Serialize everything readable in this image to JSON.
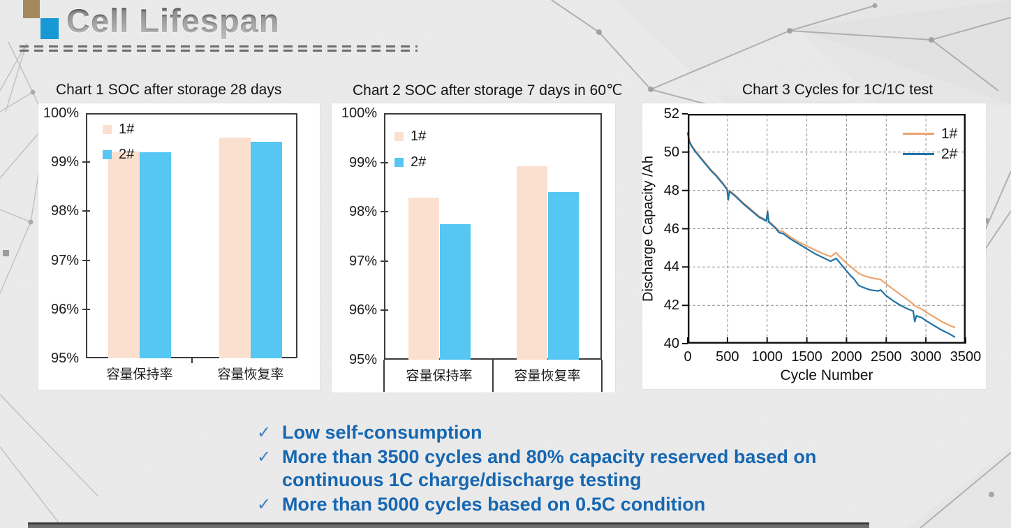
{
  "header": {
    "title": "Cell Lifespan"
  },
  "colors": {
    "slide_background": "#ededed",
    "accent_tan_square": "#a6885d",
    "accent_blue_square": "#1899d6",
    "bar_series1": "#FBE0D0",
    "bar_series2": "#56C7F2",
    "line_series1": "#ECA36E",
    "line_series2": "#2173A7",
    "bullet_text": "#1667B2"
  },
  "chart_data": [
    {
      "type": "bar",
      "title": "Chart 1 SOC after storage 28 days",
      "categories": [
        "容量保持率",
        "容量恢复率"
      ],
      "series": [
        {
          "name": "1#",
          "color": "#FBE0D0",
          "values": [
            99.22,
            99.5
          ]
        },
        {
          "name": "2#",
          "color": "#56C7F2",
          "values": [
            99.2,
            99.42
          ]
        }
      ],
      "ylim": [
        95,
        100
      ],
      "yticks": [
        100,
        99,
        98,
        97,
        96,
        95
      ],
      "ytick_labels": [
        "100%",
        "99%",
        "98%",
        "97%",
        "96%",
        "95%"
      ],
      "legend_position": "top-left",
      "grid": false
    },
    {
      "type": "bar",
      "title": "Chart 2 SOC after storage 7 days in 60℃",
      "categories": [
        "容量保持率",
        "容量恢复率"
      ],
      "series": [
        {
          "name": "1#",
          "color": "#FBE0D0",
          "values": [
            98.28,
            98.92
          ]
        },
        {
          "name": "2#",
          "color": "#56C7F2",
          "values": [
            97.75,
            98.4
          ]
        }
      ],
      "ylim": [
        95,
        100
      ],
      "yticks": [
        100,
        99,
        98,
        97,
        96,
        95
      ],
      "ytick_labels": [
        "100%",
        "99%",
        "98%",
        "97%",
        "96%",
        "95%"
      ],
      "legend_position": "top-left",
      "grid": false,
      "x_axis_table": true
    },
    {
      "type": "line",
      "title": "Chart 3 Cycles for 1C/1C test",
      "xlabel": "Cycle Number",
      "ylabel": "Discharge Capacity /Ah",
      "xlim": [
        0,
        3500
      ],
      "ylim": [
        40,
        52
      ],
      "xticks": [
        0,
        500,
        1000,
        1500,
        2000,
        2500,
        3000,
        3500
      ],
      "yticks": [
        52,
        50,
        48,
        46,
        44,
        42,
        40
      ],
      "grid": "dashed",
      "legend_position": "top-right",
      "series": [
        {
          "name": "1#",
          "color": "#ECA36E",
          "points": [
            [
              0,
              51.0
            ],
            [
              20,
              50.6
            ],
            [
              50,
              50.35
            ],
            [
              100,
              50.05
            ],
            [
              150,
              49.8
            ],
            [
              200,
              49.55
            ],
            [
              250,
              49.3
            ],
            [
              300,
              49.05
            ],
            [
              350,
              48.85
            ],
            [
              400,
              48.6
            ],
            [
              450,
              48.35
            ],
            [
              495,
              48.1
            ],
            [
              510,
              47.55
            ],
            [
              525,
              48.0
            ],
            [
              600,
              47.75
            ],
            [
              700,
              47.35
            ],
            [
              800,
              47.0
            ],
            [
              900,
              46.65
            ],
            [
              990,
              46.45
            ],
            [
              1005,
              46.95
            ],
            [
              1020,
              46.4
            ],
            [
              1100,
              46.1
            ],
            [
              1150,
              45.9
            ],
            [
              1200,
              45.85
            ],
            [
              1300,
              45.55
            ],
            [
              1400,
              45.3
            ],
            [
              1500,
              45.1
            ],
            [
              1600,
              44.9
            ],
            [
              1700,
              44.7
            ],
            [
              1800,
              44.55
            ],
            [
              1870,
              44.75
            ],
            [
              1900,
              44.6
            ],
            [
              2000,
              44.2
            ],
            [
              2100,
              43.85
            ],
            [
              2160,
              43.65
            ],
            [
              2250,
              43.5
            ],
            [
              2350,
              43.4
            ],
            [
              2430,
              43.35
            ],
            [
              2520,
              43.05
            ],
            [
              2600,
              42.8
            ],
            [
              2700,
              42.5
            ],
            [
              2800,
              42.2
            ],
            [
              2870,
              41.95
            ],
            [
              2950,
              41.8
            ],
            [
              3000,
              41.65
            ],
            [
              3100,
              41.4
            ],
            [
              3200,
              41.15
            ],
            [
              3300,
              40.95
            ],
            [
              3360,
              40.85
            ]
          ]
        },
        {
          "name": "2#",
          "color": "#2173A7",
          "points": [
            [
              0,
              51.0
            ],
            [
              20,
              50.55
            ],
            [
              50,
              50.3
            ],
            [
              100,
              50.0
            ],
            [
              150,
              49.75
            ],
            [
              200,
              49.5
            ],
            [
              250,
              49.25
            ],
            [
              300,
              49.0
            ],
            [
              350,
              48.8
            ],
            [
              400,
              48.55
            ],
            [
              450,
              48.3
            ],
            [
              495,
              48.05
            ],
            [
              510,
              47.5
            ],
            [
              525,
              47.95
            ],
            [
              600,
              47.7
            ],
            [
              700,
              47.3
            ],
            [
              800,
              46.95
            ],
            [
              900,
              46.6
            ],
            [
              990,
              46.4
            ],
            [
              1005,
              46.9
            ],
            [
              1020,
              46.35
            ],
            [
              1100,
              46.05
            ],
            [
              1150,
              45.8
            ],
            [
              1200,
              45.75
            ],
            [
              1300,
              45.45
            ],
            [
              1400,
              45.2
            ],
            [
              1500,
              44.95
            ],
            [
              1600,
              44.7
            ],
            [
              1700,
              44.5
            ],
            [
              1800,
              44.3
            ],
            [
              1870,
              44.45
            ],
            [
              1900,
              44.3
            ],
            [
              1950,
              44.05
            ],
            [
              2000,
              43.8
            ],
            [
              2050,
              43.55
            ],
            [
              2100,
              43.35
            ],
            [
              2150,
              43.05
            ],
            [
              2200,
              42.95
            ],
            [
              2300,
              42.8
            ],
            [
              2400,
              42.75
            ],
            [
              2430,
              42.8
            ],
            [
              2500,
              42.5
            ],
            [
              2600,
              42.2
            ],
            [
              2700,
              41.95
            ],
            [
              2780,
              41.8
            ],
            [
              2840,
              41.7
            ],
            [
              2860,
              41.15
            ],
            [
              2880,
              41.45
            ],
            [
              2950,
              41.35
            ],
            [
              3000,
              41.2
            ],
            [
              3100,
              40.95
            ],
            [
              3200,
              40.7
            ],
            [
              3300,
              40.5
            ],
            [
              3360,
              40.35
            ]
          ]
        }
      ]
    }
  ],
  "bullets": {
    "check_glyph": "✓",
    "items": [
      {
        "text": "Low self-consumption"
      },
      {
        "text": "More than 3500 cycles and 80% capacity reserved based on\ncontinuous 1C  charge/discharge testing"
      },
      {
        "text": "More than 5000 cycles based on 0.5C condition"
      }
    ]
  }
}
